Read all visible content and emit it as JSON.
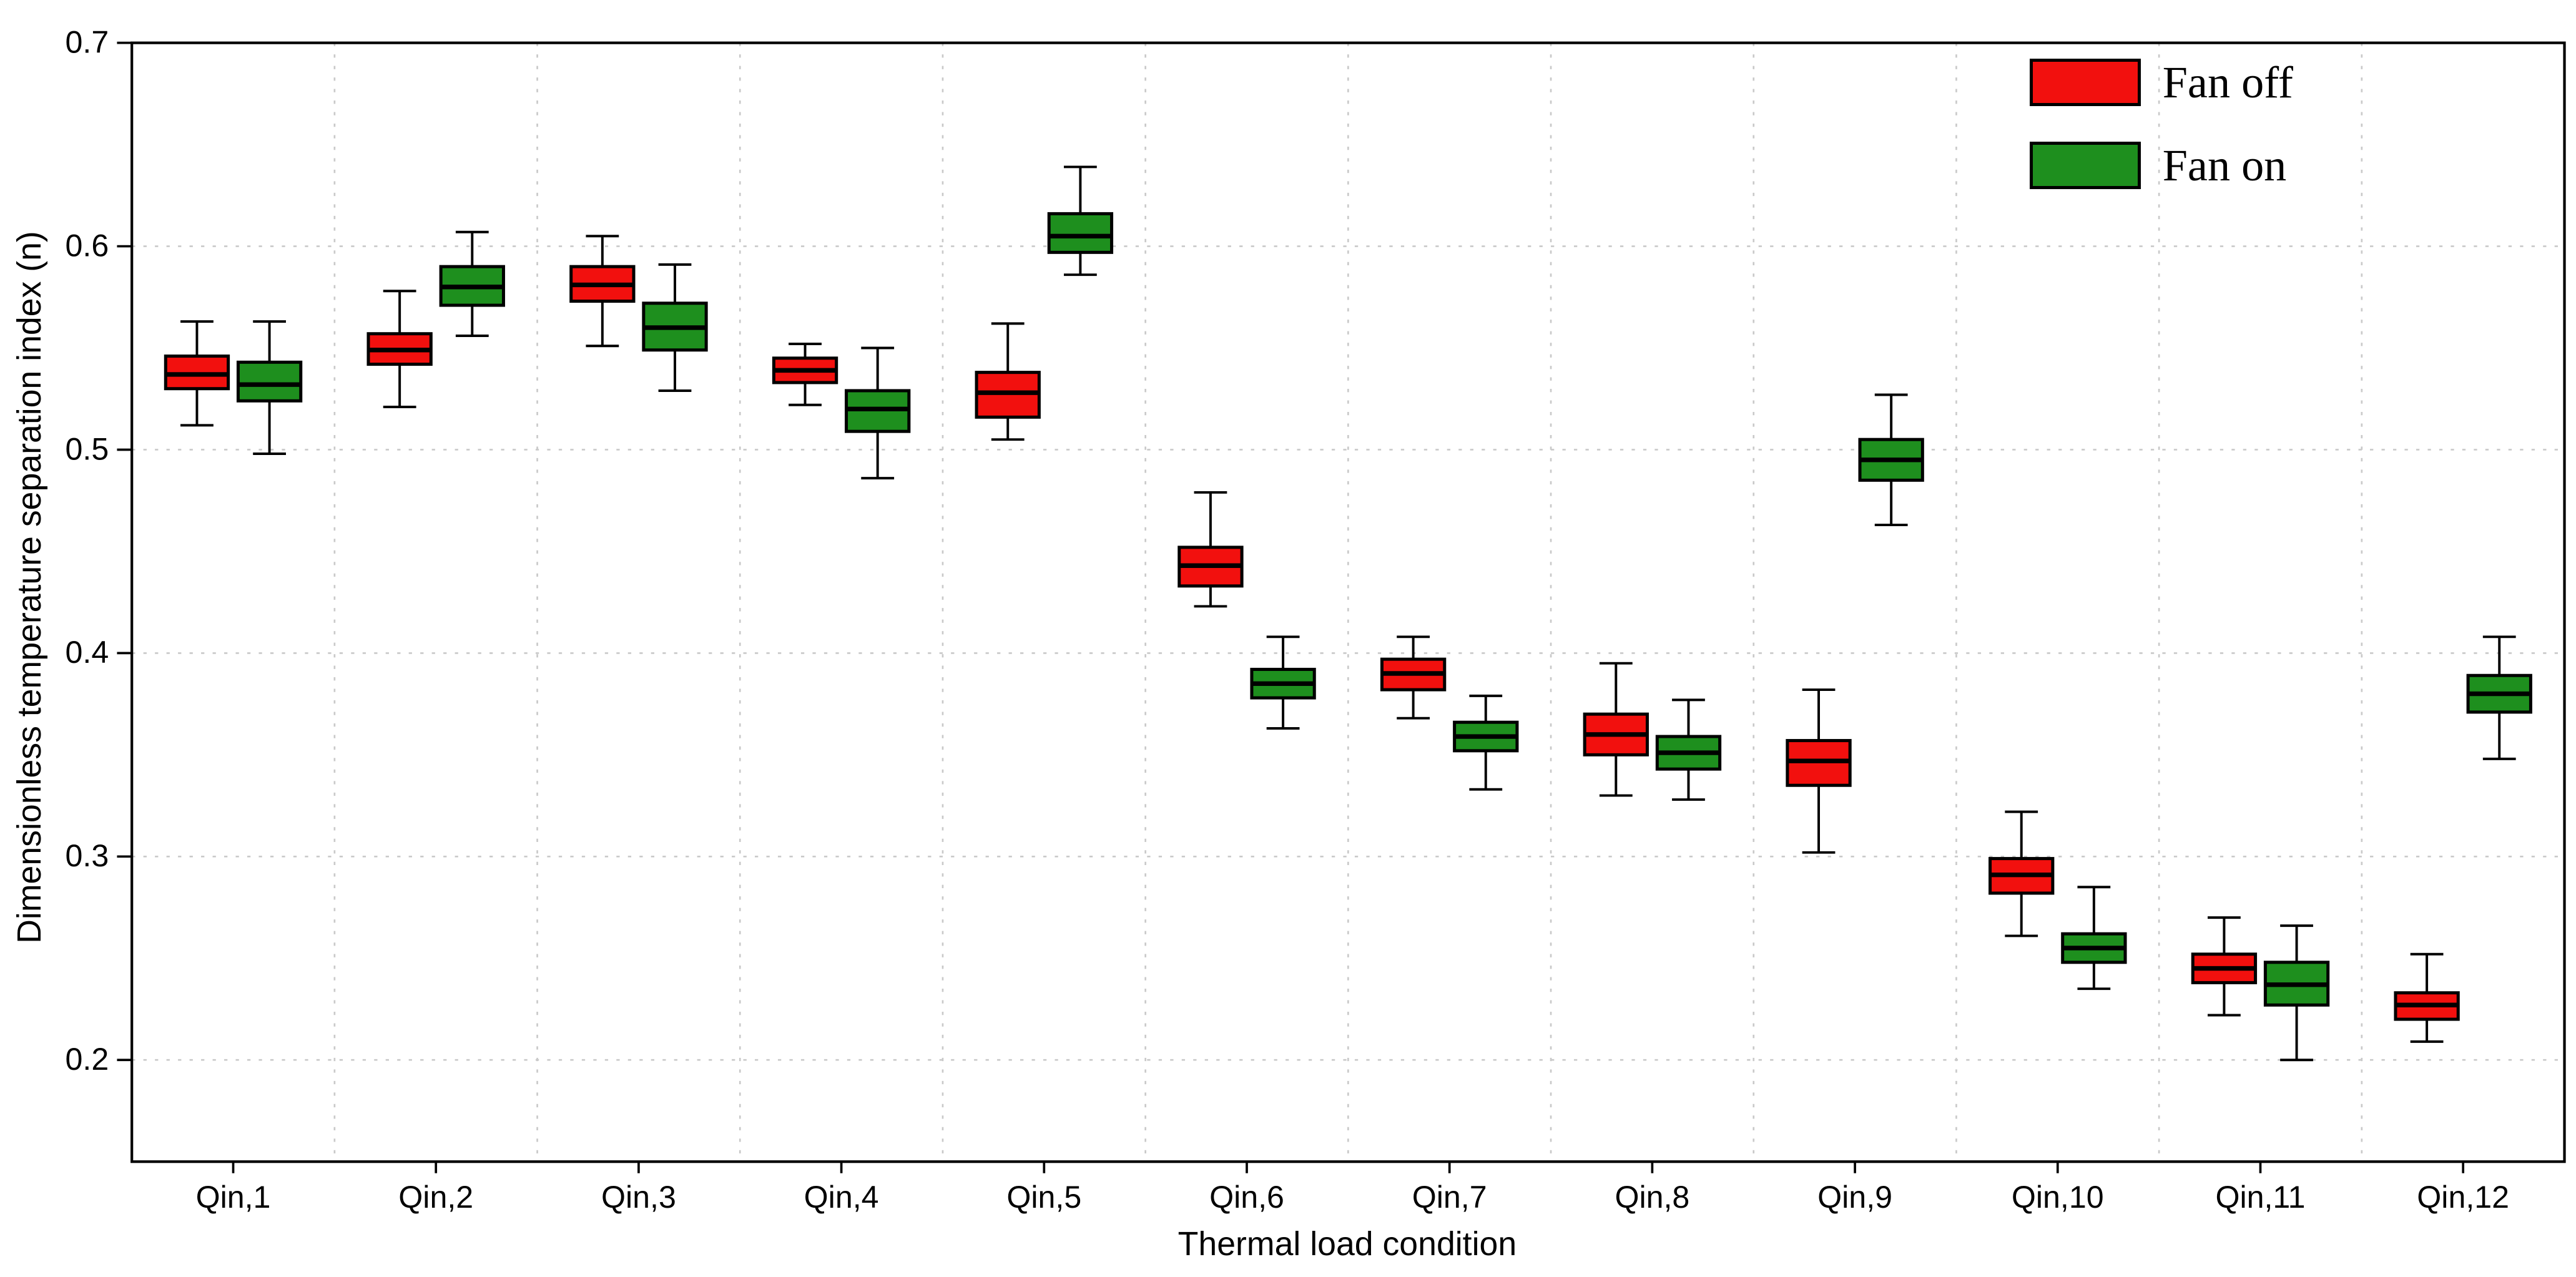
{
  "chart_data": {
    "type": "boxplot",
    "title": "",
    "xlabel": "Thermal load condition",
    "ylabel": "Dimensionless temperature separation index (n)",
    "ylim": [
      0.15,
      0.7
    ],
    "yticks": [
      0.2,
      0.3,
      0.4,
      0.5,
      0.6,
      0.7
    ],
    "grid": true,
    "legend_position": "top-right",
    "categories": [
      "Qin,1",
      "Qin,2",
      "Qin,3",
      "Qin,4",
      "Qin,5",
      "Qin,6",
      "Qin,7",
      "Qin,8",
      "Qin,9",
      "Qin,10",
      "Qin,11",
      "Qin,12"
    ],
    "legend": [
      {
        "label": "Fan off",
        "color": "#f2100e"
      },
      {
        "label": "Fan on",
        "color": "#1e8f1e"
      }
    ],
    "series": [
      {
        "name": "Fan off",
        "color": "#f2100e",
        "boxes": [
          {
            "low": 0.512,
            "q1": 0.53,
            "median": 0.537,
            "q3": 0.546,
            "high": 0.563
          },
          {
            "low": 0.521,
            "q1": 0.542,
            "median": 0.549,
            "q3": 0.557,
            "high": 0.578
          },
          {
            "low": 0.551,
            "q1": 0.573,
            "median": 0.581,
            "q3": 0.59,
            "high": 0.605
          },
          {
            "low": 0.522,
            "q1": 0.533,
            "median": 0.539,
            "q3": 0.545,
            "high": 0.552
          },
          {
            "low": 0.505,
            "q1": 0.516,
            "median": 0.528,
            "q3": 0.538,
            "high": 0.562
          },
          {
            "low": 0.423,
            "q1": 0.433,
            "median": 0.443,
            "q3": 0.452,
            "high": 0.479
          },
          {
            "low": 0.368,
            "q1": 0.382,
            "median": 0.39,
            "q3": 0.397,
            "high": 0.408
          },
          {
            "low": 0.33,
            "q1": 0.35,
            "median": 0.36,
            "q3": 0.37,
            "high": 0.395
          },
          {
            "low": 0.302,
            "q1": 0.335,
            "median": 0.347,
            "q3": 0.357,
            "high": 0.382
          },
          {
            "low": 0.261,
            "q1": 0.282,
            "median": 0.291,
            "q3": 0.299,
            "high": 0.322
          },
          {
            "low": 0.222,
            "q1": 0.238,
            "median": 0.245,
            "q3": 0.252,
            "high": 0.27
          },
          {
            "low": 0.209,
            "q1": 0.22,
            "median": 0.227,
            "q3": 0.233,
            "high": 0.252
          }
        ]
      },
      {
        "name": "Fan on",
        "color": "#1e8f1e",
        "boxes": [
          {
            "low": 0.498,
            "q1": 0.524,
            "median": 0.532,
            "q3": 0.543,
            "high": 0.563
          },
          {
            "low": 0.556,
            "q1": 0.571,
            "median": 0.58,
            "q3": 0.59,
            "high": 0.607
          },
          {
            "low": 0.529,
            "q1": 0.549,
            "median": 0.56,
            "q3": 0.572,
            "high": 0.591
          },
          {
            "low": 0.486,
            "q1": 0.509,
            "median": 0.52,
            "q3": 0.529,
            "high": 0.55
          },
          {
            "low": 0.586,
            "q1": 0.597,
            "median": 0.605,
            "q3": 0.616,
            "high": 0.639
          },
          {
            "low": 0.363,
            "q1": 0.378,
            "median": 0.385,
            "q3": 0.392,
            "high": 0.408
          },
          {
            "low": 0.333,
            "q1": 0.352,
            "median": 0.359,
            "q3": 0.366,
            "high": 0.379
          },
          {
            "low": 0.328,
            "q1": 0.343,
            "median": 0.351,
            "q3": 0.359,
            "high": 0.377
          },
          {
            "low": 0.463,
            "q1": 0.485,
            "median": 0.495,
            "q3": 0.505,
            "high": 0.527
          },
          {
            "low": 0.235,
            "q1": 0.248,
            "median": 0.255,
            "q3": 0.262,
            "high": 0.285
          },
          {
            "low": 0.2,
            "q1": 0.227,
            "median": 0.237,
            "q3": 0.248,
            "high": 0.266
          },
          {
            "low": 0.348,
            "q1": 0.371,
            "median": 0.38,
            "q3": 0.389,
            "high": 0.408
          }
        ]
      }
    ]
  }
}
